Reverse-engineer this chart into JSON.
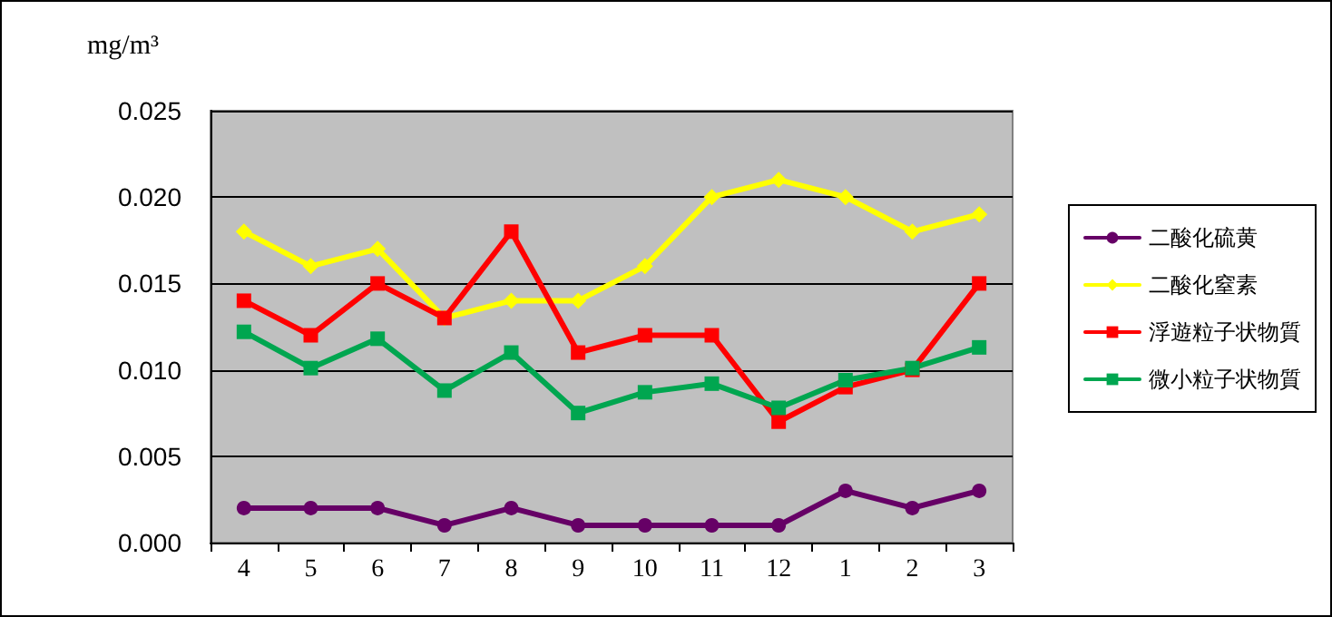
{
  "chart_data": {
    "type": "line",
    "ylabel": "mg/m³",
    "categories": [
      "4",
      "5",
      "6",
      "7",
      "8",
      "9",
      "10",
      "11",
      "12",
      "1",
      "2",
      "3"
    ],
    "series": [
      {
        "name": "二酸化硫黄",
        "color": "#660066",
        "marker": "circle",
        "values": [
          0.002,
          0.002,
          0.002,
          0.001,
          0.002,
          0.001,
          0.001,
          0.001,
          0.001,
          0.003,
          0.002,
          0.003
        ]
      },
      {
        "name": "二酸化窒素",
        "color": "#ffff00",
        "marker": "diamond",
        "values": [
          0.018,
          0.016,
          0.017,
          0.013,
          0.014,
          0.014,
          0.016,
          0.02,
          0.021,
          0.02,
          0.018,
          0.019
        ]
      },
      {
        "name": "浮遊粒子状物質",
        "color": "#ff0000",
        "marker": "square",
        "values": [
          0.014,
          0.012,
          0.015,
          0.013,
          0.018,
          0.011,
          0.012,
          0.012,
          0.007,
          0.009,
          0.01,
          0.015
        ]
      },
      {
        "name": "微小粒子状物質",
        "color": "#00a650",
        "marker": "square",
        "values": [
          0.0122,
          0.0101,
          0.0118,
          0.0088,
          0.011,
          0.0075,
          0.0087,
          0.0092,
          0.0078,
          0.0094,
          0.0101,
          0.0113
        ]
      }
    ],
    "ylim": [
      0,
      0.025
    ],
    "yticks": [
      {
        "value": 0,
        "label": "0.000"
      },
      {
        "value": 0.005,
        "label": "0.005"
      },
      {
        "value": 0.01,
        "label": "0.010"
      },
      {
        "value": 0.015,
        "label": "0.015"
      },
      {
        "value": 0.02,
        "label": "0.020"
      },
      {
        "value": 0.025,
        "label": "0.025"
      }
    ],
    "grid": "y",
    "legend": "right"
  }
}
